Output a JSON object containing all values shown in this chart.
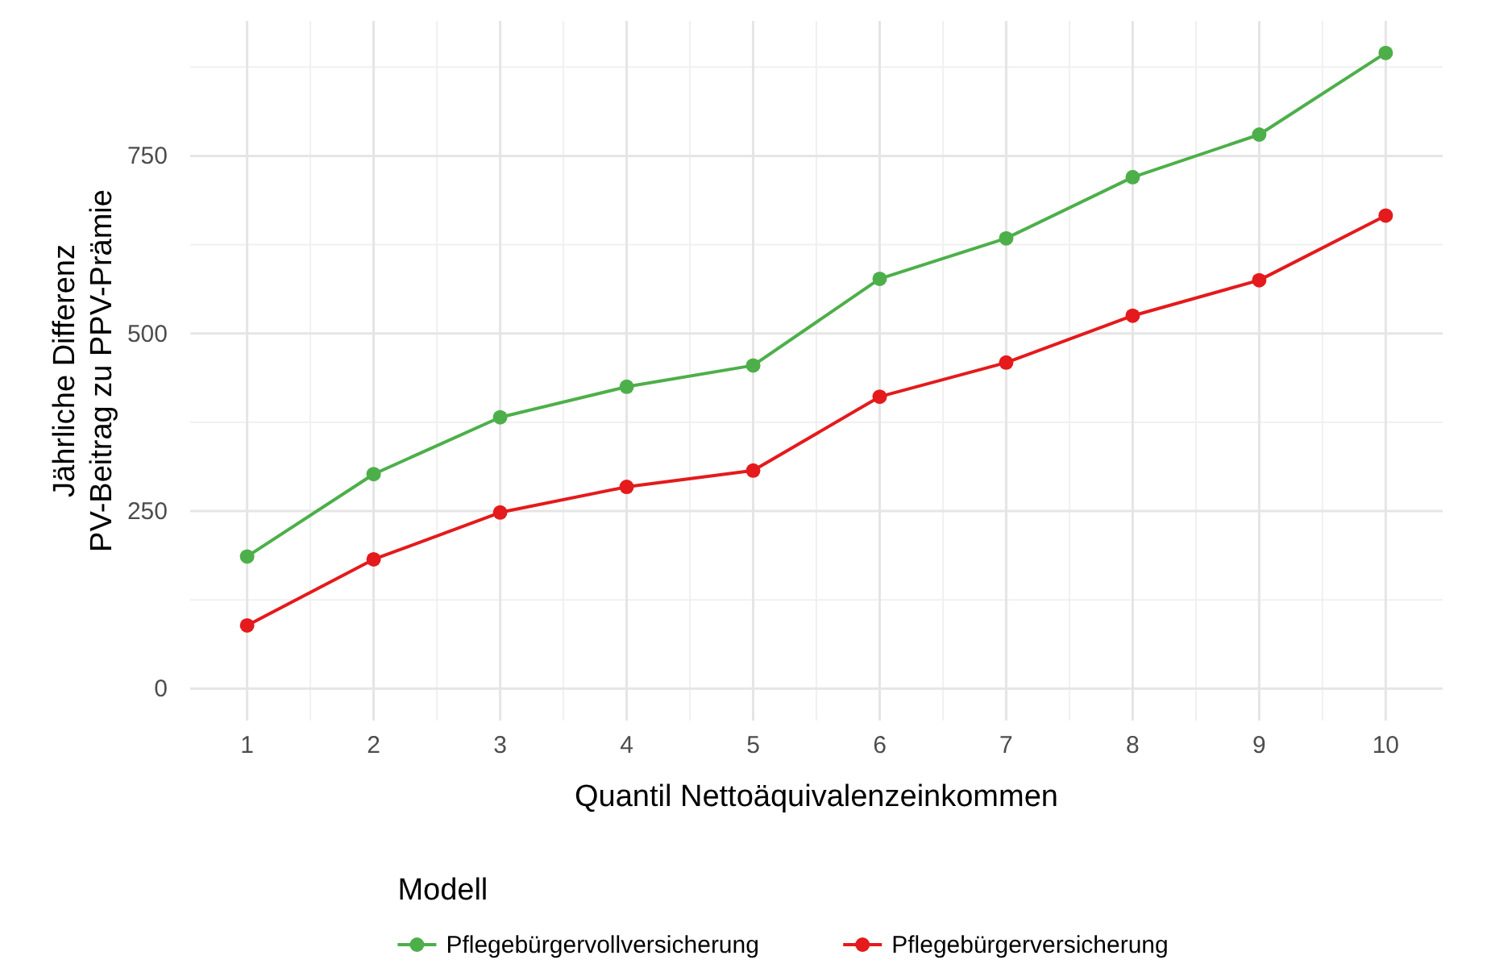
{
  "chart_data": {
    "type": "line",
    "xlabel": "Quantil Nettoäquivalenzeinkommen",
    "ylabel": "Jährliche Differenz\nPV-Beitrag zu PPV-Prämie",
    "legend_title": "Modell",
    "x": [
      1,
      2,
      3,
      4,
      5,
      6,
      7,
      8,
      9,
      10
    ],
    "xlim": [
      0.55,
      10.45
    ],
    "xticks": [
      1,
      2,
      3,
      4,
      5,
      6,
      7,
      8,
      9,
      10
    ],
    "ylim": [
      -45,
      940
    ],
    "yticks": [
      0,
      250,
      500,
      750
    ],
    "grid": true,
    "legend": "bottom",
    "marker": "circle",
    "line_style": "solid",
    "series": [
      {
        "name": "Pflegebürgervollversicherung",
        "color": "#4daf4a",
        "values": [
          186,
          302,
          382,
          425,
          455,
          577,
          634,
          720,
          780,
          895
        ]
      },
      {
        "name": "Pflegebürgerversicherung",
        "color": "#e41a1c",
        "values": [
          89,
          182,
          248,
          284,
          307,
          411,
          459,
          525,
          575,
          666
        ]
      }
    ]
  }
}
